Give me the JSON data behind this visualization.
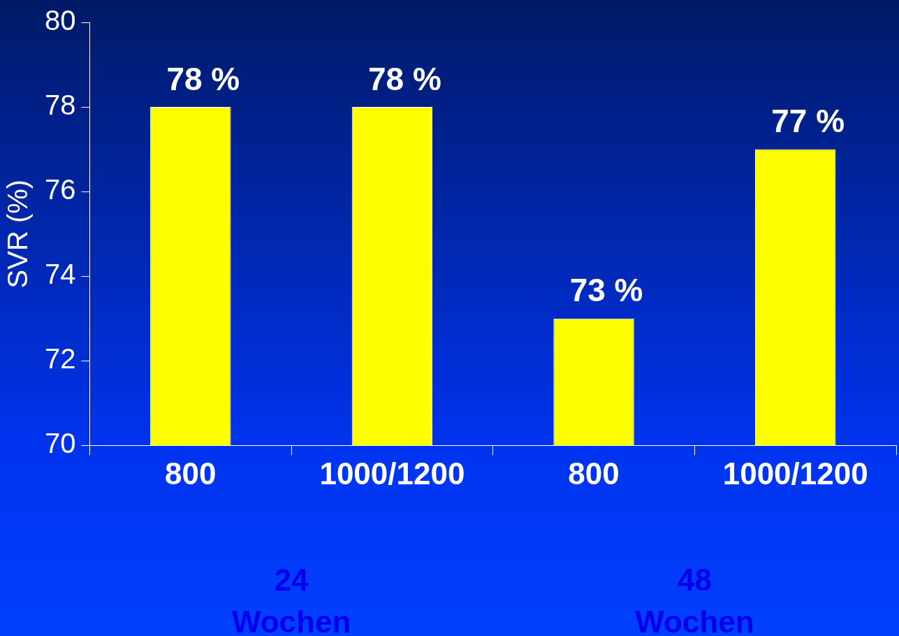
{
  "chart_data": {
    "type": "bar",
    "ylabel": "SVR (%)",
    "categories": [
      "800",
      "1000/1200",
      "800",
      "1000/1200"
    ],
    "values": [
      78,
      78,
      73,
      77
    ],
    "color": "#ffff00",
    "value_labels": [
      "78 %",
      "78 %",
      "73 %",
      "77 %"
    ],
    "ylim": [
      70,
      80
    ],
    "yticks": [
      70,
      72,
      74,
      76,
      78,
      80
    ],
    "grid": false,
    "legend": false,
    "annotations": [
      "24\nWochen",
      "48\nWochen"
    ]
  }
}
